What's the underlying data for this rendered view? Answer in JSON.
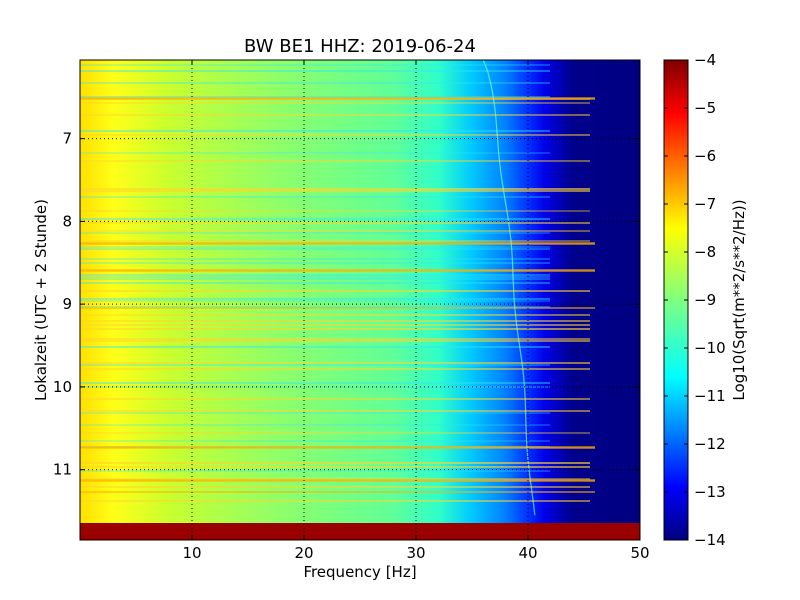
{
  "chart_data": {
    "type": "heatmap",
    "title": "BW BE1 HHZ: 2019-06-24",
    "xlabel": "Frequency [Hz]",
    "ylabel": "Lokalzeit (UTC + 2 Stunde)",
    "x_ticks": [
      10,
      20,
      30,
      40,
      50
    ],
    "y_ticks": [
      7,
      8,
      9,
      10,
      11
    ],
    "xlim": [
      0,
      50
    ],
    "ylim": [
      11.85,
      6.05
    ],
    "y_inverted": true,
    "grid": true,
    "grid_style": "dotted",
    "colormap": "jet",
    "colorbar": {
      "label": "Log10(Sqrt(m**2/s**2/Hz))",
      "ticks": [
        -4,
        -5,
        -6,
        -7,
        -8,
        -9,
        -10,
        -11,
        -12,
        -13,
        -14
      ],
      "range": [
        -14,
        -4
      ]
    },
    "data_description": {
      "frequency_range_hz": [
        0,
        50
      ],
      "time_range_hours": [
        6.05,
        11.85
      ],
      "low_frequency_level": -8,
      "mid_frequency_level": -9,
      "high_frequency_level": -14,
      "spectral_line_start_freq": 36,
      "spectral_line_end_freq": 40.5,
      "saturated_bottom_band_value": -4
    }
  },
  "colors": {
    "colormap_stops": [
      "#00007f",
      "#0000ff",
      "#007fff",
      "#00ffff",
      "#7fff7f",
      "#ffff00",
      "#ff7f00",
      "#ff0000",
      "#7f0000"
    ]
  }
}
